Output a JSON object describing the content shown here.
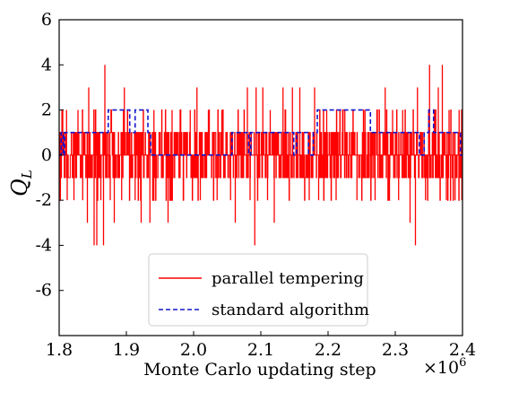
{
  "chart_data": {
    "type": "line",
    "xlabel": "Monte Carlo updating step",
    "ylabel": "Q",
    "ylabel_sub": "L",
    "x_multiplier": "×10",
    "x_multiplier_exp": "6",
    "xlim": [
      1.8,
      2.4
    ],
    "ylim": [
      -8,
      6
    ],
    "xticks": [
      {
        "value": 1.8,
        "label": "1.8"
      },
      {
        "value": 1.9,
        "label": "1.9"
      },
      {
        "value": 2.0,
        "label": "2.0"
      },
      {
        "value": 2.1,
        "label": "2.1"
      },
      {
        "value": 2.2,
        "label": "2.2"
      },
      {
        "value": 2.3,
        "label": "2.3"
      },
      {
        "value": 2.4,
        "label": "2.4"
      }
    ],
    "yticks": [
      {
        "value": 6,
        "label": "6"
      },
      {
        "value": 4,
        "label": "4"
      },
      {
        "value": 2,
        "label": "2"
      },
      {
        "value": 0,
        "label": "0"
      },
      {
        "value": -2,
        "label": "-2"
      },
      {
        "value": -4,
        "label": "-4"
      },
      {
        "value": -6,
        "label": "-6"
      }
    ],
    "grid": false,
    "legend_position": "lower-center",
    "series": [
      {
        "name": "parallel tempering",
        "color": "#ff0000",
        "style": "solid",
        "noise_seed": 7,
        "spikes": [
          [
            1.811,
            2
          ],
          [
            1.812,
            -2
          ],
          [
            1.822,
            -2
          ],
          [
            1.828,
            2
          ],
          [
            1.835,
            -2
          ],
          [
            1.842,
            -3
          ],
          [
            1.844,
            3
          ],
          [
            1.852,
            -4
          ],
          [
            1.856,
            -4
          ],
          [
            1.862,
            -2
          ],
          [
            1.866,
            -4
          ],
          [
            1.868,
            4
          ],
          [
            1.876,
            -2
          ],
          [
            1.882,
            -3
          ],
          [
            1.893,
            -2
          ],
          [
            1.897,
            3
          ],
          [
            1.913,
            -2
          ],
          [
            1.922,
            -3
          ],
          [
            1.935,
            -3
          ],
          [
            1.941,
            2
          ],
          [
            1.962,
            -3
          ],
          [
            1.968,
            2
          ],
          [
            1.98,
            2
          ],
          [
            1.985,
            -2
          ],
          [
            1.995,
            2
          ],
          [
            2.005,
            3
          ],
          [
            2.01,
            -2
          ],
          [
            2.022,
            2
          ],
          [
            2.035,
            -2
          ],
          [
            2.042,
            2
          ],
          [
            2.055,
            -2
          ],
          [
            2.062,
            -3
          ],
          [
            2.08,
            3
          ],
          [
            2.084,
            -2
          ],
          [
            2.091,
            -4
          ],
          [
            2.093,
            3
          ],
          [
            2.103,
            3
          ],
          [
            2.11,
            -2
          ],
          [
            2.114,
            2
          ],
          [
            2.12,
            -3
          ],
          [
            2.133,
            3
          ],
          [
            2.147,
            3
          ],
          [
            2.158,
            3
          ],
          [
            2.172,
            -2
          ],
          [
            2.18,
            3
          ],
          [
            2.186,
            -2
          ],
          [
            2.198,
            2
          ],
          [
            2.212,
            -2
          ],
          [
            2.225,
            2
          ],
          [
            2.243,
            -2
          ],
          [
            2.255,
            2
          ],
          [
            2.27,
            -2
          ],
          [
            2.285,
            3
          ],
          [
            2.29,
            -2
          ],
          [
            2.296,
            2
          ],
          [
            2.305,
            -2
          ],
          [
            2.311,
            2
          ],
          [
            2.322,
            -3
          ],
          [
            2.33,
            -4
          ],
          [
            2.333,
            3
          ],
          [
            2.345,
            -2
          ],
          [
            2.351,
            4
          ],
          [
            2.358,
            2
          ],
          [
            2.364,
            3
          ],
          [
            2.37,
            4
          ],
          [
            2.376,
            -2
          ],
          [
            2.38,
            2
          ],
          [
            2.389,
            -2
          ],
          [
            2.395,
            2
          ],
          [
            2.399,
            -2
          ]
        ]
      },
      {
        "name": "standard algorithm",
        "color": "#1515cc",
        "style": "dashed",
        "steps": [
          [
            1.8,
            0
          ],
          [
            1.803,
            1
          ],
          [
            1.806,
            0
          ],
          [
            1.808,
            1
          ],
          [
            1.873,
            2
          ],
          [
            1.888,
            2
          ],
          [
            1.903,
            2
          ],
          [
            1.905,
            1
          ],
          [
            1.913,
            2
          ],
          [
            1.926,
            2
          ],
          [
            1.932,
            1
          ],
          [
            1.936,
            0
          ],
          [
            2.057,
            1
          ],
          [
            2.073,
            1
          ],
          [
            2.082,
            0
          ],
          [
            2.085,
            1
          ],
          [
            2.093,
            1
          ],
          [
            2.107,
            1
          ],
          [
            2.133,
            1
          ],
          [
            2.149,
            0
          ],
          [
            2.153,
            1
          ],
          [
            2.166,
            1
          ],
          [
            2.171,
            0
          ],
          [
            2.178,
            1
          ],
          [
            2.184,
            2
          ],
          [
            2.197,
            2
          ],
          [
            2.263,
            1
          ],
          [
            2.33,
            1
          ],
          [
            2.336,
            0
          ],
          [
            2.343,
            1
          ],
          [
            2.35,
            2
          ],
          [
            2.357,
            1
          ],
          [
            2.372,
            1
          ],
          [
            2.392,
            1
          ],
          [
            2.397,
            0
          ],
          [
            2.4,
            0
          ]
        ]
      }
    ]
  }
}
